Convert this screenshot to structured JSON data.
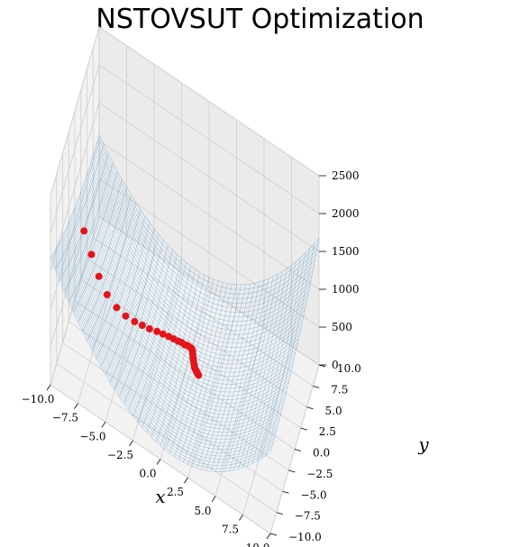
{
  "title": "NSTOVSUT Optimization",
  "chart_data": {
    "type": "surface3d",
    "title": "NSTOVSUT Optimization",
    "xlabel": "x",
    "ylabel": "y",
    "zlabel": "",
    "xlim": [
      -10,
      10
    ],
    "ylim": [
      -10,
      10
    ],
    "zlim": [
      0,
      2500
    ],
    "x_ticks": [
      "−10.0",
      "−7.5",
      "−5.0",
      "−2.5",
      "0.0",
      "2.5",
      "5.0",
      "7.5",
      "10.0"
    ],
    "y_ticks": [
      "−10.0",
      "−7.5",
      "−5.0",
      "−2.5",
      "0.0",
      "2.5",
      "5.0",
      "7.5",
      "10.0"
    ],
    "z_ticks": [
      "0",
      "500",
      "1000",
      "1500",
      "2000",
      "2500"
    ],
    "grid": true,
    "surface_color": "#1f77b4",
    "point_color": "#e3141b",
    "optimization_path": {
      "x": [
        -8.5,
        -8.0,
        -7.5,
        -6.9,
        -6.2,
        -5.5,
        -4.8,
        -4.2,
        -3.6,
        -3.0,
        -2.5,
        -2.0,
        -1.6,
        -1.2,
        -0.9,
        -0.6,
        -0.4,
        -0.2,
        0.0,
        0.1,
        0.2,
        0.3,
        0.4,
        0.5,
        0.6,
        0.7,
        0.8,
        0.9,
        1.0,
        1.1
      ],
      "y": [
        -3.0,
        -2.2,
        -1.4,
        -0.7,
        0.0,
        0.6,
        1.1,
        1.5,
        1.8,
        2.1,
        2.3,
        2.5,
        2.6,
        2.7,
        2.8,
        2.8,
        2.9,
        2.9,
        2.9,
        2.7,
        2.4,
        2.1,
        1.8,
        1.5,
        1.3,
        1.1,
        1.0,
        0.9,
        0.8,
        0.7
      ],
      "z": [
        1400,
        1050,
        720,
        460,
        280,
        170,
        110,
        75,
        55,
        45,
        38,
        33,
        30,
        28,
        27,
        26,
        26,
        25,
        25,
        25,
        25,
        25,
        25,
        25,
        25,
        25,
        25,
        25,
        25,
        25
      ]
    }
  }
}
